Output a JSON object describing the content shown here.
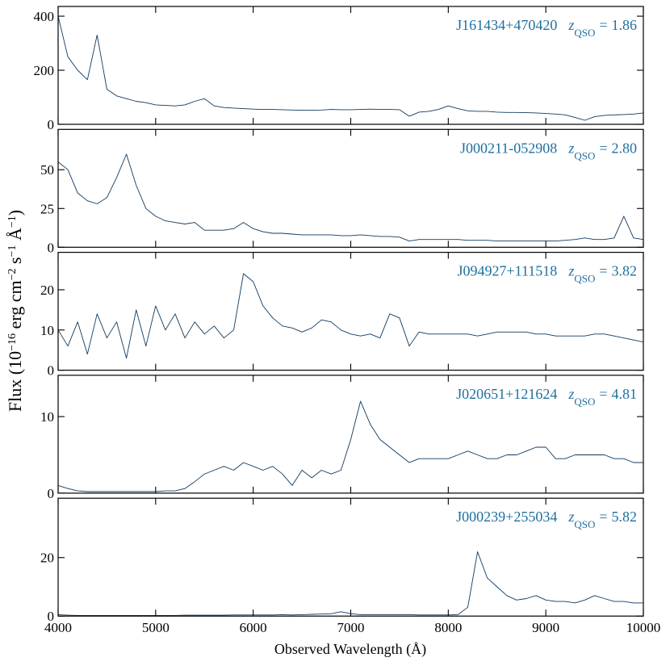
{
  "xlabel": "Observed Wavelength (Å)",
  "ylabel_parts": [
    "Flux (10",
    "−16",
    " erg cm",
    "−2",
    " s",
    "−1",
    " Å",
    "−1",
    ")"
  ],
  "chart_data": [
    {
      "type": "line",
      "name": "J161434+470420",
      "z_symbol": "z",
      "z_subscript": "QSO",
      "z_relation": "=",
      "z": 1.86,
      "color": "#0f3a5f",
      "xlim": [
        4000,
        10000
      ],
      "xticks": [
        4000,
        5000,
        6000,
        7000,
        8000,
        9000,
        10000
      ],
      "ylim": [
        0,
        436
      ],
      "yticks": [
        0,
        200,
        400
      ],
      "x": [
        4000,
        4100,
        4200,
        4300,
        4400,
        4500,
        4600,
        4700,
        4800,
        4900,
        5000,
        5100,
        5200,
        5300,
        5400,
        5500,
        5600,
        5700,
        5800,
        5900,
        6000,
        6100,
        6200,
        6300,
        6400,
        6500,
        6600,
        6700,
        6800,
        6900,
        7000,
        7100,
        7200,
        7300,
        7400,
        7500,
        7600,
        7700,
        7800,
        7900,
        8000,
        8100,
        8200,
        8300,
        8400,
        8500,
        8600,
        8700,
        8800,
        8900,
        9000,
        9100,
        9200,
        9300,
        9400,
        9500,
        9600,
        9700,
        9800,
        9900,
        10000
      ],
      "values": [
        400,
        250,
        200,
        165,
        330,
        130,
        105,
        95,
        85,
        80,
        72,
        70,
        68,
        72,
        85,
        95,
        68,
        62,
        60,
        58,
        56,
        55,
        55,
        54,
        53,
        52,
        52,
        53,
        55,
        54,
        54,
        55,
        56,
        55,
        55,
        54,
        30,
        45,
        48,
        55,
        68,
        58,
        50,
        48,
        48,
        45,
        44,
        44,
        43,
        42,
        40,
        38,
        35,
        25,
        15,
        28,
        33,
        35,
        36,
        38,
        42
      ]
    },
    {
      "type": "line",
      "name": "J000211-052908",
      "z_symbol": "z",
      "z_subscript": "QSO",
      "z_relation": "=",
      "z": 2.8,
      "color": "#0f3a5f",
      "xlim": [
        4000,
        10000
      ],
      "xticks": [
        4000,
        5000,
        6000,
        7000,
        8000,
        9000,
        10000
      ],
      "ylim": [
        0,
        76
      ],
      "yticks": [
        0,
        25,
        50
      ],
      "x": [
        4000,
        4100,
        4200,
        4300,
        4400,
        4500,
        4600,
        4700,
        4800,
        4900,
        5000,
        5100,
        5200,
        5300,
        5400,
        5500,
        5600,
        5700,
        5800,
        5900,
        6000,
        6100,
        6200,
        6300,
        6400,
        6500,
        6600,
        6700,
        6800,
        6900,
        7000,
        7100,
        7200,
        7300,
        7400,
        7500,
        7600,
        7700,
        7800,
        7900,
        8000,
        8100,
        8200,
        8300,
        8400,
        8500,
        8600,
        8700,
        8800,
        8900,
        9000,
        9100,
        9200,
        9300,
        9400,
        9500,
        9600,
        9700,
        9800,
        9900,
        10000
      ],
      "values": [
        55,
        50,
        35,
        30,
        28,
        32,
        45,
        60,
        40,
        25,
        20,
        17,
        16,
        15,
        16,
        11,
        11,
        11,
        12,
        16,
        12,
        10,
        9,
        9,
        8.5,
        8,
        8,
        8,
        8,
        7.5,
        7.5,
        8,
        7.5,
        7,
        7,
        6.5,
        4,
        5,
        5,
        5,
        5,
        5,
        4.5,
        4.5,
        4.5,
        4,
        4,
        4,
        4,
        4,
        4,
        4,
        4.5,
        5,
        6,
        5,
        5,
        6,
        20,
        6,
        5
      ]
    },
    {
      "type": "line",
      "name": "J094927+111518",
      "z_symbol": "z",
      "z_subscript": "QSO",
      "z_relation": "=",
      "z": 3.82,
      "color": "#0f3a5f",
      "xlim": [
        4000,
        10000
      ],
      "xticks": [
        4000,
        5000,
        6000,
        7000,
        8000,
        9000,
        10000
      ],
      "ylim": [
        0,
        29.3
      ],
      "yticks": [
        0,
        10,
        20
      ],
      "x": [
        4000,
        4100,
        4200,
        4300,
        4400,
        4500,
        4600,
        4700,
        4800,
        4900,
        5000,
        5100,
        5200,
        5300,
        5400,
        5500,
        5600,
        5700,
        5800,
        5900,
        6000,
        6100,
        6200,
        6300,
        6400,
        6500,
        6600,
        6700,
        6800,
        6900,
        7000,
        7100,
        7200,
        7300,
        7400,
        7500,
        7600,
        7700,
        7800,
        7900,
        8000,
        8100,
        8200,
        8300,
        8400,
        8500,
        8600,
        8700,
        8800,
        8900,
        9000,
        9100,
        9200,
        9300,
        9400,
        9500,
        9600,
        9700,
        9800,
        9900,
        10000
      ],
      "values": [
        10,
        6,
        12,
        4,
        14,
        8,
        12,
        3,
        15,
        6,
        16,
        10,
        14,
        8,
        12,
        9,
        11,
        8,
        10,
        24,
        22,
        16,
        13,
        11,
        10.5,
        9.5,
        10.5,
        12.5,
        12,
        10,
        9,
        8.5,
        9,
        8,
        14,
        13,
        6,
        9.5,
        9,
        9,
        9,
        9,
        9,
        8.5,
        9,
        9.5,
        9.5,
        9.5,
        9.5,
        9,
        9,
        8.5,
        8.5,
        8.5,
        8.5,
        9,
        9,
        8.5,
        8,
        7.5,
        7
      ]
    },
    {
      "type": "line",
      "name": "J020651+121624",
      "z_symbol": "z",
      "z_subscript": "QSO",
      "z_relation": "=",
      "z": 4.81,
      "color": "#0f3a5f",
      "xlim": [
        4000,
        10000
      ],
      "xticks": [
        4000,
        5000,
        6000,
        7000,
        8000,
        9000,
        10000
      ],
      "ylim": [
        0,
        15.4
      ],
      "yticks": [
        0,
        10
      ],
      "x": [
        4000,
        4100,
        4200,
        4300,
        4400,
        4500,
        4600,
        4700,
        4800,
        4900,
        5000,
        5100,
        5200,
        5300,
        5400,
        5500,
        5600,
        5700,
        5800,
        5900,
        6000,
        6100,
        6200,
        6300,
        6400,
        6500,
        6600,
        6700,
        6800,
        6900,
        7000,
        7100,
        7200,
        7300,
        7400,
        7500,
        7600,
        7700,
        7800,
        7900,
        8000,
        8100,
        8200,
        8300,
        8400,
        8500,
        8600,
        8700,
        8800,
        8900,
        9000,
        9100,
        9200,
        9300,
        9400,
        9500,
        9600,
        9700,
        9800,
        9900,
        10000
      ],
      "values": [
        1,
        0.6,
        0.3,
        0.2,
        0.2,
        0.2,
        0.2,
        0.2,
        0.2,
        0.2,
        0.2,
        0.3,
        0.3,
        0.6,
        1.5,
        2.5,
        3,
        3.5,
        3,
        4,
        3.5,
        3,
        3.5,
        2.5,
        1,
        3,
        2,
        3,
        2.5,
        3,
        7,
        12,
        9,
        7,
        6,
        5,
        4,
        4.5,
        4.5,
        4.5,
        4.5,
        5,
        5.5,
        5,
        4.5,
        4.5,
        5,
        5,
        5.5,
        6,
        6,
        4.5,
        4.5,
        5,
        5,
        5,
        5,
        4.5,
        4.5,
        4,
        4
      ]
    },
    {
      "type": "line",
      "name": "J000239+255034",
      "z_symbol": "z",
      "z_subscript": "QSO",
      "z_relation": "=",
      "z": 5.82,
      "color": "#0f3a5f",
      "xlim": [
        4000,
        10000
      ],
      "xticks": [
        4000,
        5000,
        6000,
        7000,
        8000,
        9000,
        10000
      ],
      "ylim": [
        0,
        40.3
      ],
      "yticks": [
        0,
        20
      ],
      "x": [
        4000,
        4100,
        4200,
        4300,
        4400,
        4500,
        4600,
        4700,
        4800,
        4900,
        5000,
        5100,
        5200,
        5300,
        5400,
        5500,
        5600,
        5700,
        5800,
        5900,
        6000,
        6100,
        6200,
        6300,
        6400,
        6500,
        6600,
        6700,
        6800,
        6900,
        7000,
        7100,
        7200,
        7300,
        7400,
        7500,
        7600,
        7700,
        7800,
        7900,
        8000,
        8100,
        8200,
        8300,
        8400,
        8500,
        8600,
        8700,
        8800,
        8900,
        9000,
        9100,
        9200,
        9300,
        9400,
        9500,
        9600,
        9700,
        9800,
        9900,
        10000
      ],
      "values": [
        0.5,
        0.3,
        0.2,
        0.2,
        0.2,
        0.2,
        0.2,
        0.2,
        0.2,
        0.2,
        0.2,
        0.2,
        0.2,
        0.3,
        0.3,
        0.3,
        0.3,
        0.3,
        0.4,
        0.4,
        0.4,
        0.4,
        0.4,
        0.5,
        0.4,
        0.5,
        0.6,
        0.7,
        0.8,
        1.5,
        0.8,
        0.5,
        0.5,
        0.5,
        0.5,
        0.5,
        0.5,
        0.4,
        0.4,
        0.4,
        0.4,
        0.5,
        3,
        22,
        13,
        10,
        7,
        5.5,
        6,
        7,
        5.5,
        5,
        5,
        4.5,
        5.5,
        7,
        6,
        5,
        5,
        4.5,
        4.5
      ]
    }
  ]
}
